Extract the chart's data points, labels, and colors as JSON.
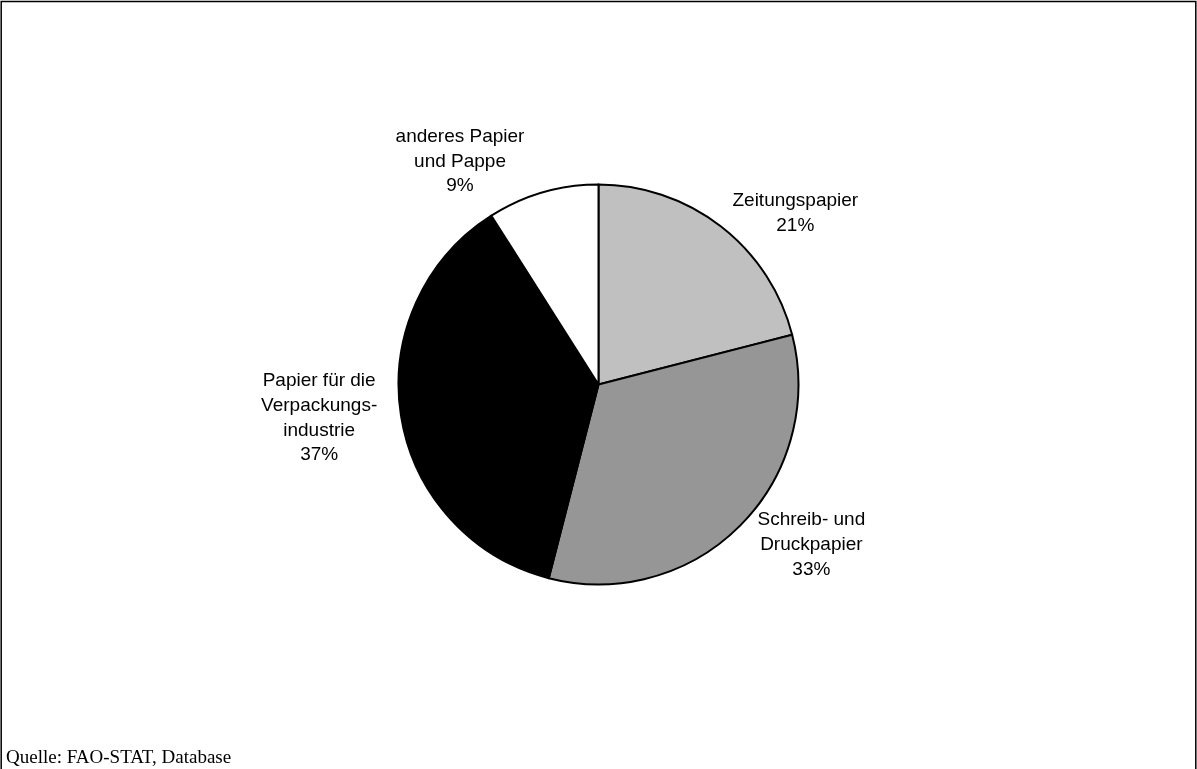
{
  "chart_data": {
    "type": "pie",
    "categories": [
      "Zeitungspapier",
      "Schreib- und\nDruckpapier",
      "Papier für die\nVerpackungs-\nindustrie",
      "anderes Papier\nund Pappe"
    ],
    "values": [
      21,
      33,
      37,
      9
    ],
    "value_labels": [
      "21%",
      "33%",
      "37%",
      "9%"
    ],
    "colors": [
      "#c0c0c0",
      "#969696",
      "#000000",
      "#ffffff"
    ],
    "legend": false,
    "annotations": [
      "Quelle: FAO-STAT, Database"
    ]
  }
}
